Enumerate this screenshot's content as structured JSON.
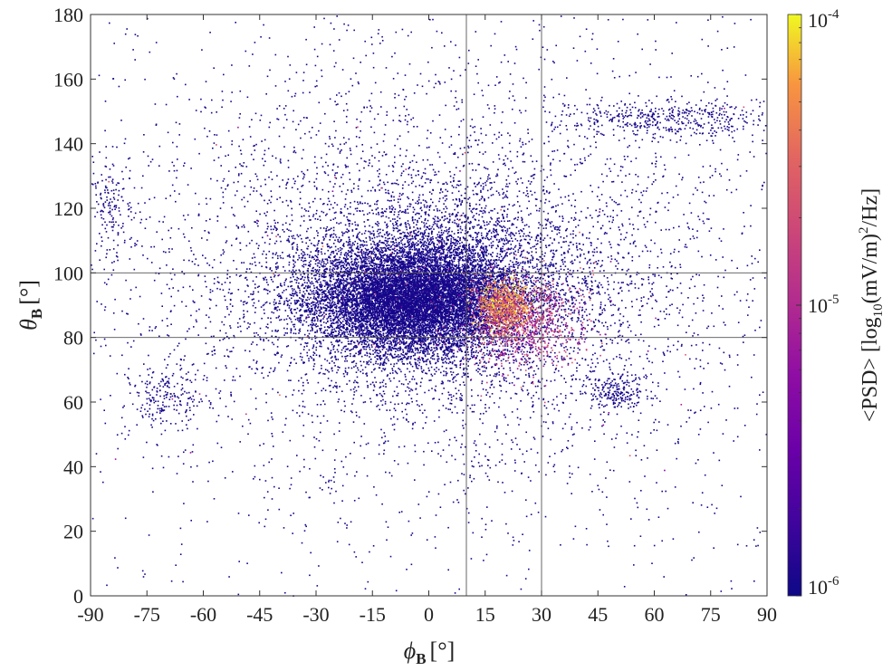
{
  "chart_data": {
    "type": "scatter",
    "title": "",
    "xlabel": "ϕ",
    "xlabel_sub": "B",
    "xlabel_unit": "[°]",
    "ylabel": "θ",
    "ylabel_sub": "B",
    "ylabel_unit": "[°]",
    "xlim": [
      -90,
      90
    ],
    "ylim": [
      0,
      180
    ],
    "xticks": [
      -90,
      -75,
      -60,
      -45,
      -30,
      -15,
      0,
      15,
      30,
      45,
      60,
      75,
      90
    ],
    "yticks": [
      0,
      20,
      40,
      60,
      80,
      100,
      120,
      140,
      160,
      180
    ],
    "grid": false,
    "reference_lines": {
      "x": [
        10,
        30
      ],
      "y": [
        80,
        100
      ]
    },
    "colorbar": {
      "label_prefix": "<PSD> [log",
      "label_sub": "10",
      "label_mid": "(mV/m)",
      "label_sup": "2",
      "label_suffix": "/Hz]",
      "scale": "log",
      "range": [
        1e-06,
        0.0001
      ],
      "tick_labels": [
        {
          "value": 0.0001,
          "base": "10",
          "exp": "-4"
        },
        {
          "value": 1e-05,
          "base": "10",
          "exp": "-5"
        },
        {
          "value": 1e-06,
          "base": "10",
          "exp": "-6"
        }
      ],
      "colormap": "plasma"
    },
    "point_clusters": [
      {
        "center": [
          -4,
          92
        ],
        "spread": [
          13,
          8
        ],
        "count": 9000,
        "psd": "low"
      },
      {
        "center": [
          2,
          96
        ],
        "spread": [
          22,
          15
        ],
        "count": 5000,
        "psd": "low"
      },
      {
        "center": [
          0,
          100
        ],
        "spread": [
          45,
          35
        ],
        "count": 3500,
        "psd": "low"
      },
      {
        "center": [
          20,
          90
        ],
        "spread": [
          3.5,
          4
        ],
        "count": 900,
        "psd": "high"
      },
      {
        "center": [
          25,
          85
        ],
        "spread": [
          8,
          7
        ],
        "count": 900,
        "psd": "mid"
      },
      {
        "center": [
          0,
          90
        ],
        "spread": [
          90,
          90
        ],
        "count": 1800,
        "psd": "low"
      },
      {
        "center": [
          65,
          148
        ],
        "spread": [
          15,
          3
        ],
        "count": 450,
        "psd": "low"
      },
      {
        "center": [
          -70,
          62
        ],
        "spread": [
          5,
          4
        ],
        "count": 180,
        "psd": "low"
      },
      {
        "center": [
          -85,
          120
        ],
        "spread": [
          3,
          7
        ],
        "count": 150,
        "psd": "low"
      },
      {
        "center": [
          50,
          63
        ],
        "spread": [
          4,
          3
        ],
        "count": 200,
        "psd": "low"
      }
    ]
  }
}
